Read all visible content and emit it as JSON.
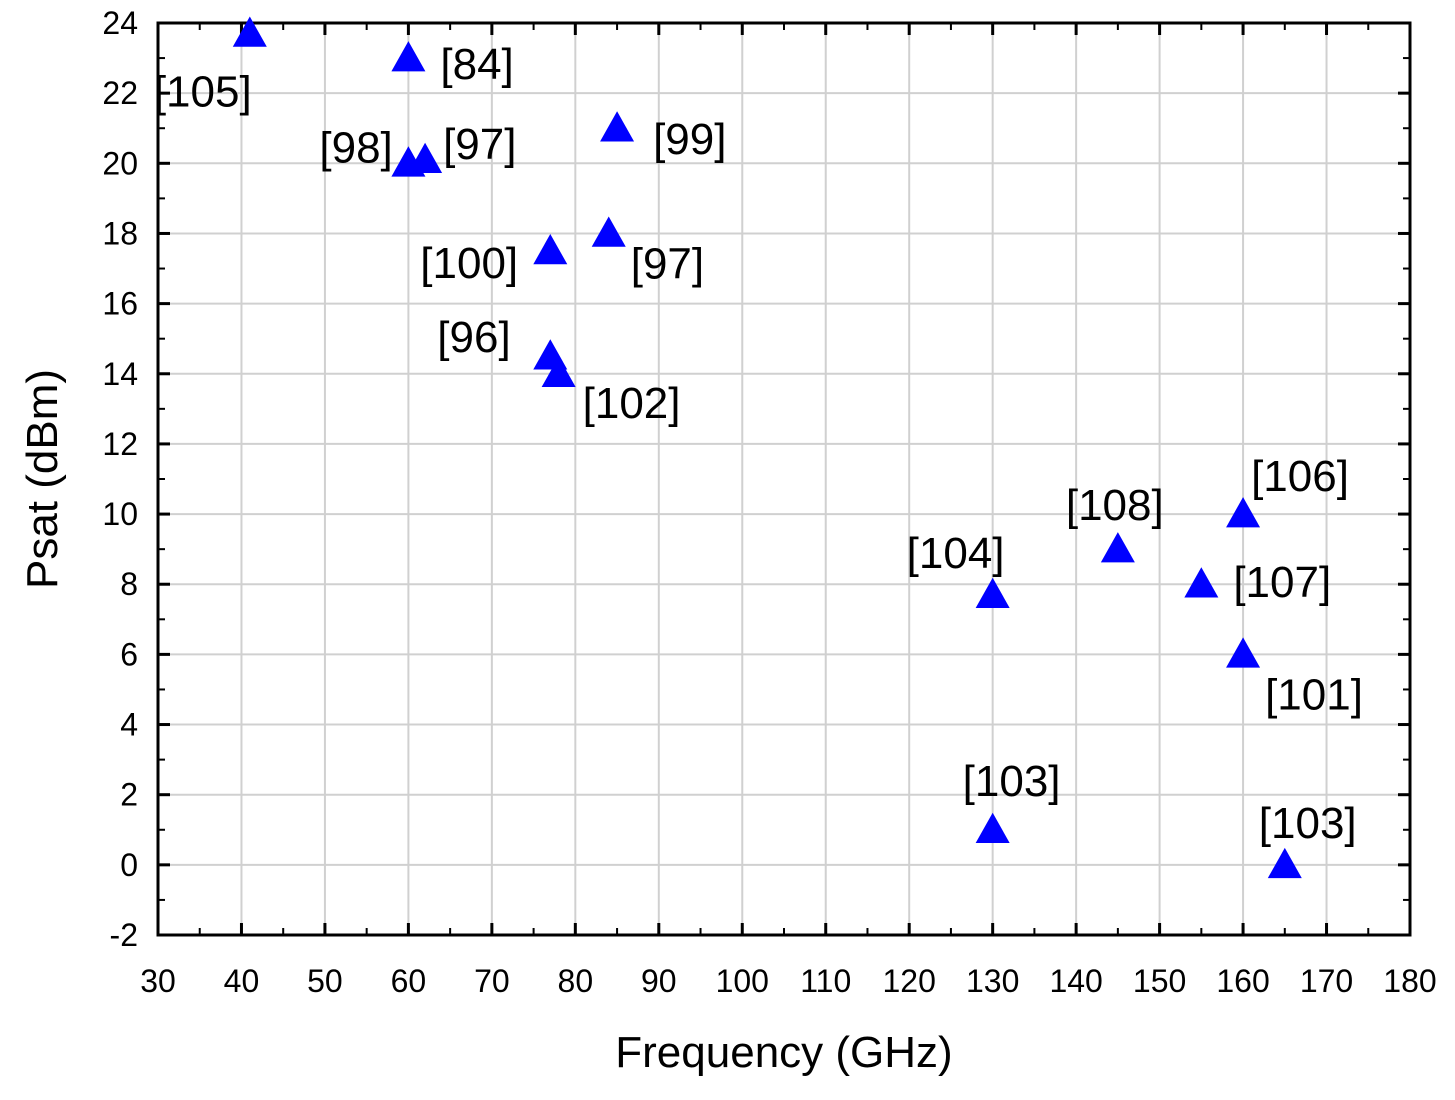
{
  "chart_data": {
    "type": "scatter",
    "title": "",
    "xlabel": "Frequency (GHz)",
    "ylabel": "Psat (dBm)",
    "xlim": [
      30,
      180
    ],
    "ylim": [
      -2,
      24
    ],
    "xticks": [
      30,
      40,
      50,
      60,
      70,
      80,
      90,
      100,
      110,
      120,
      130,
      140,
      150,
      160,
      170,
      180
    ],
    "yticks": [
      -2,
      0,
      2,
      4,
      6,
      8,
      10,
      12,
      14,
      16,
      18,
      20,
      22,
      24
    ],
    "grid": true,
    "marker": "triangle-up",
    "marker_color": "#0000ff",
    "points": [
      {
        "x": 41,
        "y": 23.7,
        "label": "[105]"
      },
      {
        "x": 60,
        "y": 23.0,
        "label": "[84]"
      },
      {
        "x": 60,
        "y": 20.0,
        "label": "[98]"
      },
      {
        "x": 62,
        "y": 20.1,
        "label": "[97]"
      },
      {
        "x": 85,
        "y": 21.0,
        "label": "[99]"
      },
      {
        "x": 84,
        "y": 18.0,
        "label": "[97]"
      },
      {
        "x": 77,
        "y": 17.5,
        "label": "[100]"
      },
      {
        "x": 77,
        "y": 14.5,
        "label": "[96]"
      },
      {
        "x": 78,
        "y": 14.0,
        "label": "[102]"
      },
      {
        "x": 130,
        "y": 7.7,
        "label": "[104]"
      },
      {
        "x": 145,
        "y": 9.0,
        "label": "[108]"
      },
      {
        "x": 160,
        "y": 10.0,
        "label": "[106]"
      },
      {
        "x": 155,
        "y": 8.0,
        "label": "[107]"
      },
      {
        "x": 160,
        "y": 6.0,
        "label": "[101]"
      },
      {
        "x": 130,
        "y": 1.0,
        "label": "[103]"
      },
      {
        "x": 165,
        "y": 0.0,
        "label": "[103]"
      }
    ]
  }
}
